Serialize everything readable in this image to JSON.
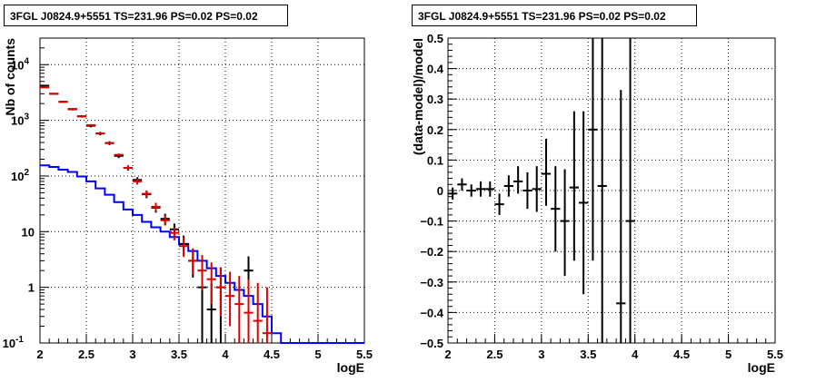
{
  "chart_data": [
    {
      "type": "scatter",
      "title": "3FGL J0824.9+5551 TS=231.96 PS=0.02 PS=0.02",
      "xlabel": "logE",
      "ylabel": "Nb of counts",
      "xlim": [
        2,
        5.5
      ],
      "ylim": [
        0.1,
        30000
      ],
      "y_scale": "log",
      "grid": true,
      "x_ticks": [
        "2",
        "2.5",
        "3",
        "3.5",
        "4",
        "4.5",
        "5",
        "5.5"
      ],
      "y_ticks": [
        {
          "value": 0.1,
          "label": "10",
          "exp": "-1"
        },
        {
          "value": 1,
          "label": "1",
          "exp": ""
        },
        {
          "value": 10,
          "label": "10",
          "exp": ""
        },
        {
          "value": 100,
          "label": "10",
          "exp": "2"
        },
        {
          "value": 1000,
          "label": "10",
          "exp": "3"
        },
        {
          "value": 10000,
          "label": "10",
          "exp": "4"
        }
      ],
      "bin_edges": [
        2.0,
        2.1,
        2.2,
        2.3,
        2.4,
        2.5,
        2.6,
        2.7,
        2.8,
        2.9,
        3.0,
        3.1,
        3.2,
        3.3,
        3.4,
        3.5,
        3.6,
        3.7,
        3.8,
        3.9,
        4.0,
        4.1,
        4.2,
        4.3,
        4.4,
        4.5,
        4.6,
        4.7,
        4.8,
        4.9,
        5.0,
        5.1,
        5.2,
        5.3,
        5.4,
        5.5
      ],
      "series": [
        {
          "color": "#0000ff",
          "style": "step",
          "values": [
            155,
            145,
            130,
            118,
            98,
            80,
            60,
            46,
            34,
            25,
            20,
            15,
            12,
            10,
            8,
            6,
            4.5,
            3,
            2.2,
            1.6,
            1.2,
            0.9,
            0.7,
            0.5,
            0.3,
            0.15,
            0.1,
            0.1,
            0.1,
            0.1,
            0.1,
            0.1,
            0.1,
            0.1,
            0.1
          ]
        },
        {
          "color": "#000000",
          "style": "errorbar",
          "points": [
            {
              "x": 2.05,
              "y": 4200,
              "lo": 4080,
              "hi": 4320
            },
            {
              "x": 2.15,
              "y": 3000,
              "lo": 2900,
              "hi": 3100
            },
            {
              "x": 2.25,
              "y": 2150,
              "lo": 2070,
              "hi": 2230
            },
            {
              "x": 2.35,
              "y": 1580,
              "lo": 1510,
              "hi": 1650
            },
            {
              "x": 2.45,
              "y": 1180,
              "lo": 1120,
              "hi": 1240
            },
            {
              "x": 2.55,
              "y": 800,
              "lo": 750,
              "hi": 850
            },
            {
              "x": 2.65,
              "y": 580,
              "lo": 540,
              "hi": 620
            },
            {
              "x": 2.75,
              "y": 390,
              "lo": 360,
              "hi": 420
            },
            {
              "x": 2.85,
              "y": 230,
              "lo": 210,
              "hi": 250
            },
            {
              "x": 2.95,
              "y": 140,
              "lo": 125,
              "hi": 155
            },
            {
              "x": 3.05,
              "y": 85,
              "lo": 75,
              "hi": 95
            },
            {
              "x": 3.15,
              "y": 47,
              "lo": 40,
              "hi": 54
            },
            {
              "x": 3.25,
              "y": 27,
              "lo": 22,
              "hi": 32
            },
            {
              "x": 3.35,
              "y": 17,
              "lo": 13,
              "hi": 21
            },
            {
              "x": 3.45,
              "y": 11,
              "lo": 8,
              "hi": 14
            },
            {
              "x": 3.55,
              "y": 6,
              "lo": 3.8,
              "hi": 8.5
            },
            {
              "x": 3.65,
              "y": 3,
              "lo": 1.5,
              "hi": 4.8
            },
            {
              "x": 3.75,
              "y": 1,
              "lo": 0.1,
              "hi": 2.3
            },
            {
              "x": 3.85,
              "y": 0.4,
              "lo": 0.1,
              "hi": 1.2
            },
            {
              "x": 3.95,
              "y": 1,
              "lo": 0.1,
              "hi": 2.3
            },
            {
              "x": 4.25,
              "y": 2,
              "lo": 0.7,
              "hi": 3.6
            }
          ]
        },
        {
          "color": "#dd0000",
          "style": "errorbar",
          "points": [
            {
              "x": 2.05,
              "y": 3900,
              "lo": 3900,
              "hi": 3900
            },
            {
              "x": 2.15,
              "y": 3000,
              "lo": 3000,
              "hi": 3000
            },
            {
              "x": 2.25,
              "y": 2150,
              "lo": 2150,
              "hi": 2150
            },
            {
              "x": 2.35,
              "y": 1600,
              "lo": 1600,
              "hi": 1600
            },
            {
              "x": 2.45,
              "y": 1180,
              "lo": 1180,
              "hi": 1180
            },
            {
              "x": 2.55,
              "y": 820,
              "lo": 820,
              "hi": 820
            },
            {
              "x": 2.65,
              "y": 580,
              "lo": 565,
              "hi": 595
            },
            {
              "x": 2.75,
              "y": 390,
              "lo": 375,
              "hi": 405
            },
            {
              "x": 2.85,
              "y": 240,
              "lo": 228,
              "hi": 252
            },
            {
              "x": 2.95,
              "y": 140,
              "lo": 128,
              "hi": 152
            },
            {
              "x": 3.05,
              "y": 80,
              "lo": 70,
              "hi": 90
            },
            {
              "x": 3.15,
              "y": 48,
              "lo": 42,
              "hi": 55
            },
            {
              "x": 3.25,
              "y": 28,
              "lo": 23,
              "hi": 33
            },
            {
              "x": 3.35,
              "y": 16,
              "lo": 13,
              "hi": 20
            },
            {
              "x": 3.45,
              "y": 9.5,
              "lo": 7,
              "hi": 12
            },
            {
              "x": 3.55,
              "y": 5.5,
              "lo": 3.5,
              "hi": 8
            },
            {
              "x": 3.65,
              "y": 3,
              "lo": 1.7,
              "hi": 5
            },
            {
              "x": 3.75,
              "y": 2,
              "lo": 0.9,
              "hi": 3.8
            },
            {
              "x": 3.85,
              "y": 1.4,
              "lo": 0.5,
              "hi": 2.8
            },
            {
              "x": 3.95,
              "y": 1,
              "lo": 0.3,
              "hi": 2.3
            },
            {
              "x": 4.05,
              "y": 0.7,
              "lo": 0.2,
              "hi": 1.9
            },
            {
              "x": 4.15,
              "y": 0.5,
              "lo": 0.1,
              "hi": 1.6
            },
            {
              "x": 4.25,
              "y": 0.35,
              "lo": 0.1,
              "hi": 1.4
            },
            {
              "x": 4.35,
              "y": 0.25,
              "lo": 0.1,
              "hi": 1.2
            },
            {
              "x": 4.45,
              "y": 0.15,
              "lo": 0.1,
              "hi": 1.0
            }
          ]
        }
      ]
    },
    {
      "type": "scatter",
      "title": "3FGL J0824.9+5551 TS=231.96 PS=0.02 PS=0.02",
      "xlabel": "logE",
      "ylabel": "(data-model)/model",
      "xlim": [
        2,
        5.5
      ],
      "ylim": [
        -0.5,
        0.5
      ],
      "grid": true,
      "x_ticks": [
        "2",
        "2.5",
        "3",
        "3.5",
        "4",
        "4.5",
        "5",
        "5.5"
      ],
      "y_ticks": [
        "-0.5",
        "-0.4",
        "-0.3",
        "-0.2",
        "-0.1",
        "0",
        "0.1",
        "0.2",
        "0.3",
        "0.4",
        "0.5"
      ],
      "series": [
        {
          "color": "#000000",
          "style": "errorbar",
          "points": [
            {
              "x": 2.05,
              "y": -0.01,
              "lo": -0.03,
              "hi": 0.01
            },
            {
              "x": 2.15,
              "y": 0.02,
              "lo": 0.0,
              "hi": 0.04
            },
            {
              "x": 2.25,
              "y": 0.0,
              "lo": -0.02,
              "hi": 0.02
            },
            {
              "x": 2.35,
              "y": 0.005,
              "lo": -0.02,
              "hi": 0.03
            },
            {
              "x": 2.45,
              "y": 0.005,
              "lo": -0.02,
              "hi": 0.03
            },
            {
              "x": 2.55,
              "y": -0.045,
              "lo": -0.08,
              "hi": -0.01
            },
            {
              "x": 2.65,
              "y": 0.015,
              "lo": -0.02,
              "hi": 0.05
            },
            {
              "x": 2.75,
              "y": 0.03,
              "lo": -0.01,
              "hi": 0.08
            },
            {
              "x": 2.85,
              "y": 0.0,
              "lo": -0.06,
              "hi": 0.06
            },
            {
              "x": 2.95,
              "y": 0.005,
              "lo": -0.07,
              "hi": 0.08
            },
            {
              "x": 3.05,
              "y": 0.055,
              "lo": -0.05,
              "hi": 0.17
            },
            {
              "x": 3.15,
              "y": -0.06,
              "lo": -0.2,
              "hi": 0.08
            },
            {
              "x": 3.25,
              "y": -0.1,
              "lo": -0.28,
              "hi": 0.07
            },
            {
              "x": 3.35,
              "y": 0.01,
              "lo": -0.23,
              "hi": 0.26
            },
            {
              "x": 3.45,
              "y": -0.04,
              "lo": -0.34,
              "hi": 0.26
            },
            {
              "x": 3.55,
              "y": 0.2,
              "lo": -0.23,
              "hi": 0.5
            },
            {
              "x": 3.65,
              "y": 0.015,
              "lo": -0.5,
              "hi": 0.5
            },
            {
              "x": 3.85,
              "y": -0.37,
              "lo": -0.5,
              "hi": 0.33
            },
            {
              "x": 3.95,
              "y": -0.1,
              "lo": -0.5,
              "hi": 0.5
            }
          ]
        }
      ]
    }
  ]
}
